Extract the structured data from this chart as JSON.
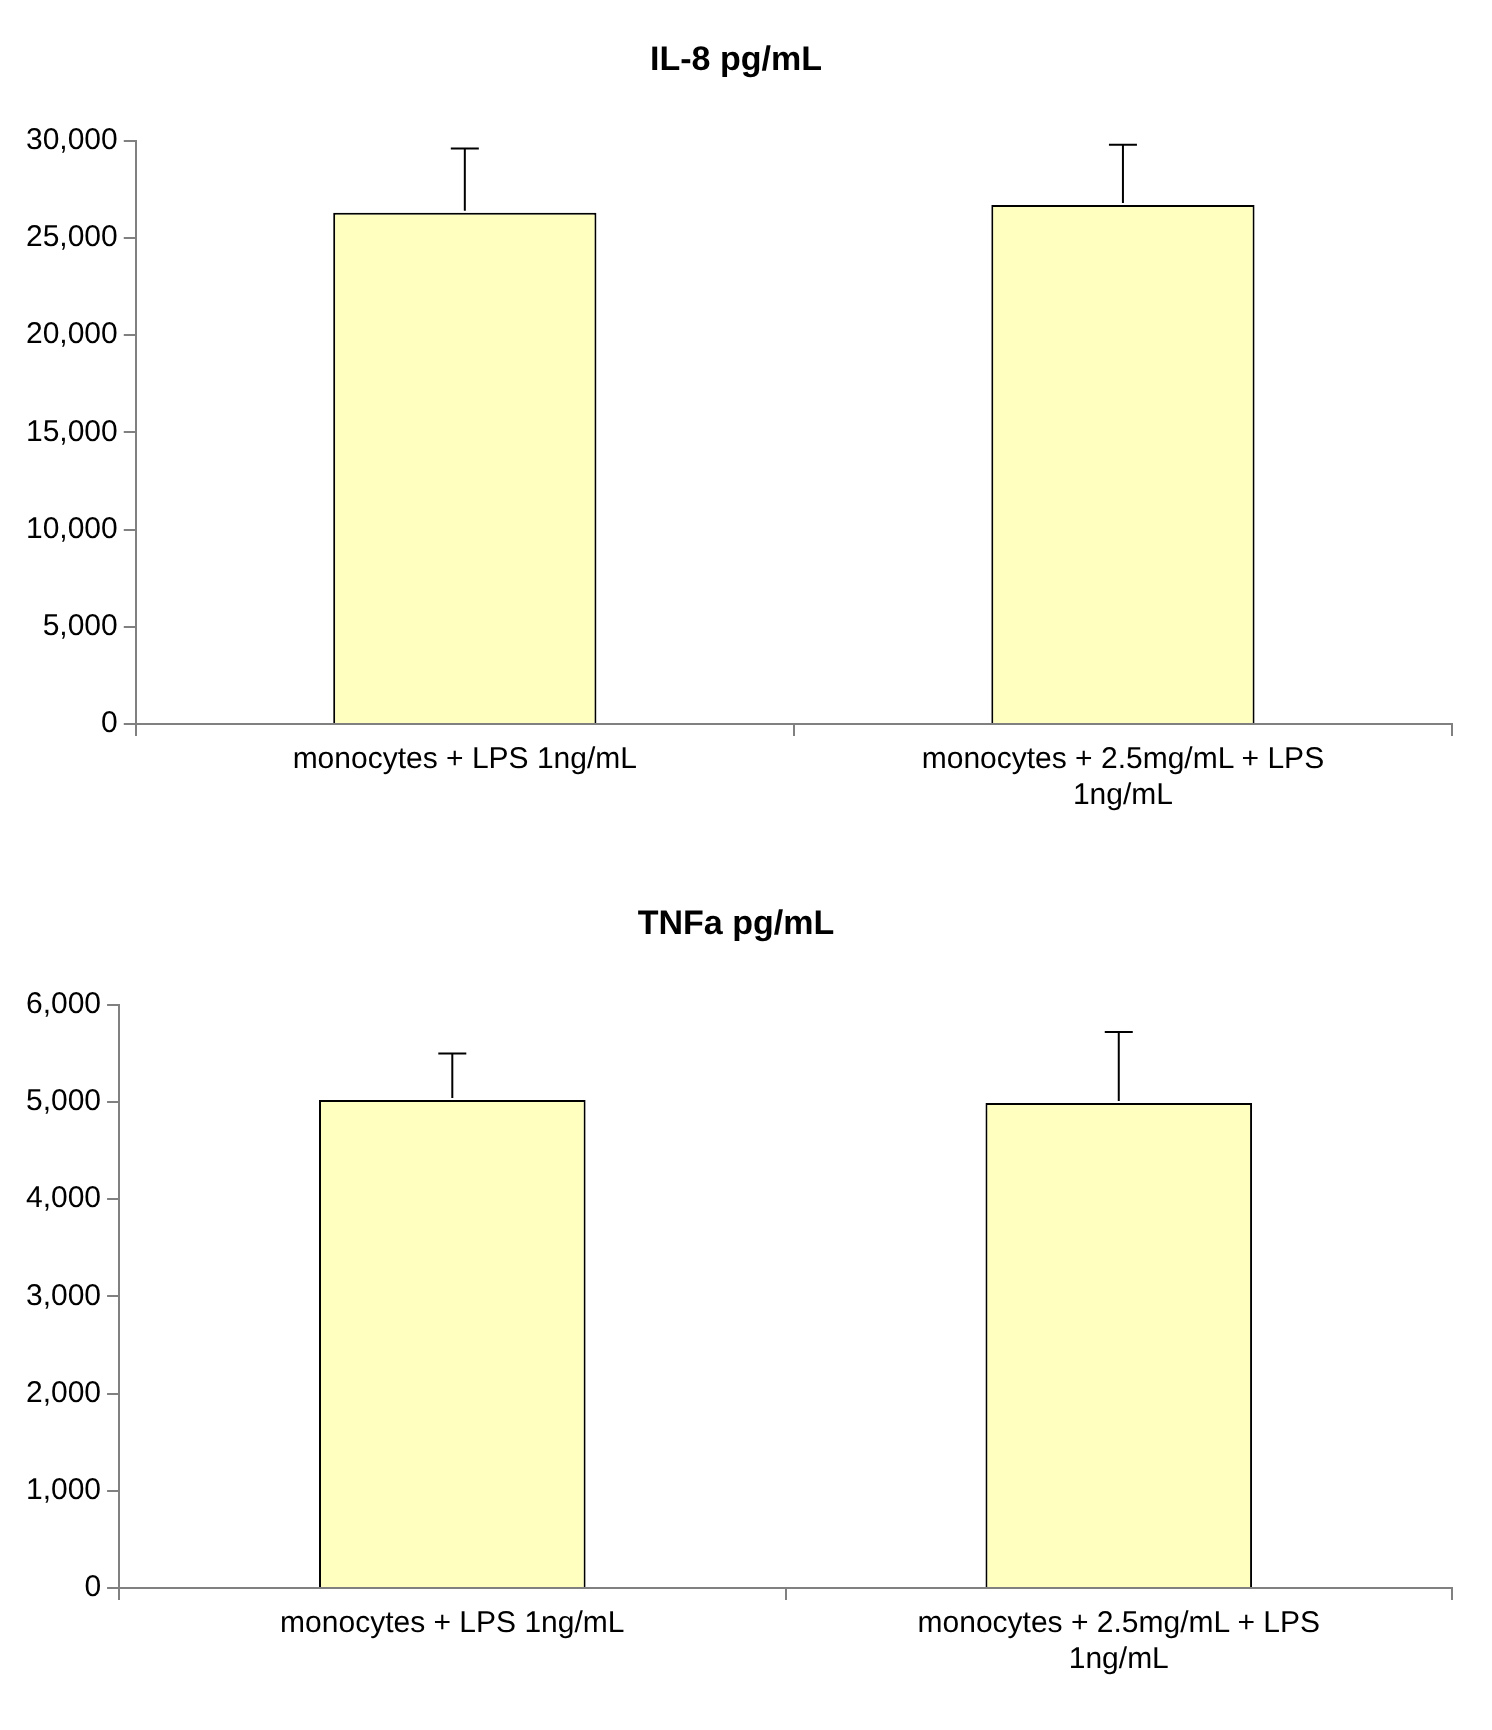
{
  "chart_data": [
    {
      "type": "bar",
      "title": "IL-8 pg/mL",
      "categories": [
        "monocytes + LPS 1ng/mL",
        "monocytes + 2.5mg/mL + LPS 1ng/mL"
      ],
      "values": [
        26300,
        26700
      ],
      "errors": [
        [
          26300,
          29600
        ],
        [
          26700,
          29800
        ]
      ],
      "color": "#ffffc0",
      "ylim": [
        0,
        30000
      ],
      "yticks": [
        {
          "value": 0,
          "label": "0"
        },
        {
          "value": 5000,
          "label": "5,000"
        },
        {
          "value": 10000,
          "label": "10,000"
        },
        {
          "value": 15000,
          "label": "15,000"
        },
        {
          "value": 20000,
          "label": "20,000"
        },
        {
          "value": 25000,
          "label": "25,000"
        },
        {
          "value": 30000,
          "label": "30,000"
        }
      ],
      "grid": false,
      "legend": false
    },
    {
      "type": "bar",
      "title": "TNFa pg/mL",
      "categories": [
        "monocytes + LPS 1ng/mL",
        "monocytes + 2.5mg/mL + LPS 1ng/mL"
      ],
      "values": [
        5020,
        4990
      ],
      "errors": [
        [
          5020,
          5500
        ],
        [
          4990,
          5720
        ]
      ],
      "color": "#ffffc0",
      "ylim": [
        0,
        6000
      ],
      "yticks": [
        {
          "value": 0,
          "label": "0"
        },
        {
          "value": 1000,
          "label": "1,000"
        },
        {
          "value": 2000,
          "label": "2,000"
        },
        {
          "value": 3000,
          "label": "3,000"
        },
        {
          "value": 4000,
          "label": "4,000"
        },
        {
          "value": 5000,
          "label": "5,000"
        },
        {
          "value": 6000,
          "label": "6,000"
        }
      ],
      "grid": false,
      "legend": false
    }
  ]
}
